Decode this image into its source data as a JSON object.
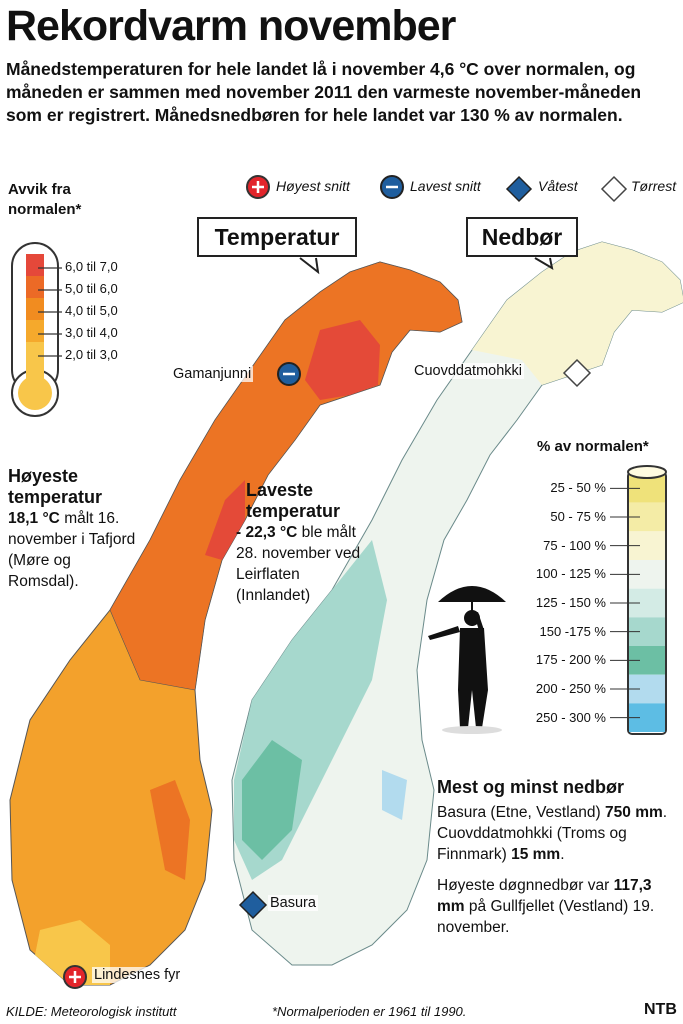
{
  "title": "Rekordvarm november",
  "subtitle": "Månedstemperaturen for hele landet lå i november 4,6 °C over normalen, og måneden er sammen med november 2011 den varmeste november-måneden som er registrert. Månedsnedbøren for hele landet var 130 % av normalen.",
  "symbol_legend": [
    "Høyest snitt",
    "Lavest snitt",
    "Våtest",
    "Tørrest"
  ],
  "temperature": {
    "label": "Temperatur",
    "legend_title": "Avvik fra normalen*",
    "legend": [
      "6,0 til 7,0",
      "5,0 til 6,0",
      "4,0 til 5,0",
      "3,0 til 4,0",
      "2,0 til 3,0"
    ],
    "colors": [
      "#e5483a",
      "#ec6a26",
      "#f18c20",
      "#f5a92c",
      "#f8c64a"
    ],
    "markers": [
      "Gamanjunni",
      "Lindesnes fyr"
    ]
  },
  "highest": {
    "heading": "Høyeste temperatur",
    "value": "18,1 °C",
    "text": "målt 16. november i Tafjord (Møre og Romsdal)."
  },
  "lowest": {
    "heading": "Laveste temperatur",
    "value": "- 22,3 °C",
    "text": "ble målt 28. november ved Leirflaten (Innlandet)"
  },
  "precipitation": {
    "label": "Nedbør",
    "legend_title": "% av normalen*",
    "legend": [
      "25 - 50 %",
      "50 - 75 %",
      "75 - 100 %",
      "100 - 125 %",
      "125 - 150 %",
      "150 -175 %",
      "175 - 200 %",
      "200 - 250 %",
      "250 - 300 %"
    ],
    "colors": [
      "#efe27a",
      "#f4eca6",
      "#f8f4d2",
      "#eef4ee",
      "#d3ebe5",
      "#a6d8cd",
      "#6cbfa4",
      "#b2dbee",
      "#5dbde4"
    ],
    "markers": [
      "Cuovddatmohkki",
      "Basura"
    ]
  },
  "extremes": {
    "heading": "Mest og minst nedbør",
    "paragraphs": [
      [
        "Basura (Etne, Vestland)",
        "750 mm",
        ". Cuovddatmohkki (Troms og Finnmark)",
        "15 mm",
        "."
      ],
      [
        "Høyeste døgnnedbør var",
        "117,3 mm",
        "på Gullfjellet (Vestland) 19. november."
      ]
    ]
  },
  "footer": {
    "source": "KILDE: Meteorologisk institutt",
    "note": "*Normalperioden er 1961 til 1990.",
    "logo": "NTB"
  }
}
